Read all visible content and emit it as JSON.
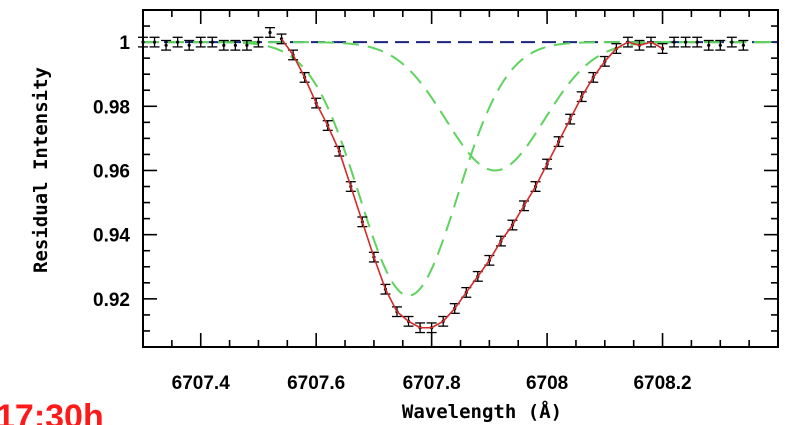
{
  "overlay_text": "17:30h",
  "colors": {
    "data": "#000000",
    "fit_total": "#d42a2a",
    "components": "#5ed35e",
    "continuum": "#1a237e"
  },
  "chart_data": {
    "type": "line",
    "xlabel": "Wavelength (Å)",
    "ylabel": "Residual Intensity",
    "xlim": [
      6707.3,
      6708.4
    ],
    "ylim": [
      0.905,
      1.01
    ],
    "x_ticks": [
      6707.4,
      6707.6,
      6707.8,
      6708,
      6708.2
    ],
    "x_tick_labels": [
      "6707.4",
      "6707.6",
      "6707.8",
      "6708",
      "6708.2"
    ],
    "y_ticks": [
      0.92,
      0.94,
      0.96,
      0.98,
      1
    ],
    "y_tick_labels": [
      "0.92",
      "0.94",
      "0.96",
      "0.98",
      "1"
    ],
    "continuum": 1.0,
    "components": [
      {
        "center": 6707.76,
        "depth": 0.079,
        "sigma": 0.085
      },
      {
        "center": 6707.91,
        "depth": 0.04,
        "sigma": 0.085
      }
    ],
    "observed": {
      "x": [
        6707.3,
        6707.32,
        6707.34,
        6707.36,
        6707.38,
        6707.4,
        6707.42,
        6707.44,
        6707.46,
        6707.48,
        6707.5,
        6707.52,
        6707.54,
        6707.56,
        6707.58,
        6707.6,
        6707.62,
        6707.64,
        6707.66,
        6707.68,
        6707.7,
        6707.72,
        6707.74,
        6707.76,
        6707.78,
        6707.8,
        6707.82,
        6707.84,
        6707.86,
        6707.88,
        6707.9,
        6707.92,
        6707.94,
        6707.96,
        6707.98,
        6708.0,
        6708.02,
        6708.04,
        6708.06,
        6708.08,
        6708.1,
        6708.12,
        6708.14,
        6708.16,
        6708.18,
        6708.2,
        6708.22,
        6708.24,
        6708.26,
        6708.28,
        6708.3,
        6708.32,
        6708.34
      ],
      "y": [
        1.0,
        1.0,
        0.999,
        1.0,
        0.999,
        1.0,
        1.0,
        0.999,
        0.999,
        0.999,
        1.0,
        1.003,
        1.001,
        0.996,
        0.989,
        0.981,
        0.974,
        0.966,
        0.955,
        0.944,
        0.933,
        0.923,
        0.916,
        0.913,
        0.911,
        0.911,
        0.913,
        0.917,
        0.922,
        0.927,
        0.932,
        0.938,
        0.943,
        0.949,
        0.955,
        0.962,
        0.969,
        0.976,
        0.983,
        0.989,
        0.994,
        0.998,
        1.0,
        0.999,
        1.0,
        0.998,
        1.0,
        1.0,
        1.0,
        0.999,
        0.999,
        1.0,
        0.999
      ],
      "error": 0.0015
    },
    "grid": false,
    "legend": "none"
  }
}
